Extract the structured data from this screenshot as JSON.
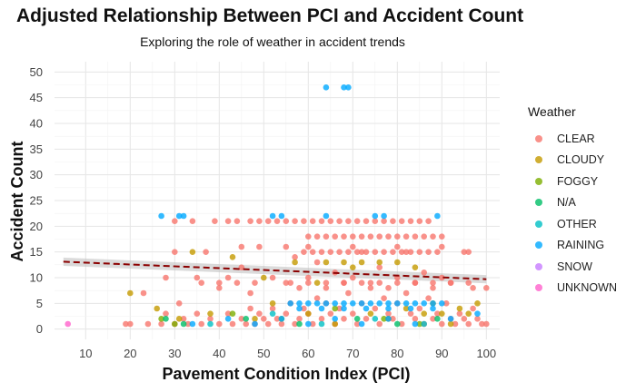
{
  "chart_data": {
    "type": "scatter",
    "title": "Adjusted Relationship Between PCI and Accident Count",
    "subtitle": "Exploring the role of weather in accident trends",
    "xlabel": "Pavement Condition Index (PCI)",
    "ylabel": "Accident Count",
    "xlim": [
      3,
      103
    ],
    "ylim": [
      -2,
      52
    ],
    "xticks": [
      10,
      20,
      30,
      40,
      50,
      60,
      70,
      80,
      90,
      100
    ],
    "yticks": [
      0,
      5,
      10,
      15,
      20,
      25,
      30,
      35,
      40,
      45,
      50
    ],
    "grid": true,
    "legend": {
      "title": "Weather",
      "position": "right"
    },
    "series": [
      {
        "name": "CLEAR",
        "color": "#F8766D",
        "points": [
          [
            19,
            1
          ],
          [
            20,
            1
          ],
          [
            24,
            1
          ],
          [
            27,
            1
          ],
          [
            28,
            3
          ],
          [
            30,
            1
          ],
          [
            31,
            5
          ],
          [
            32,
            2
          ],
          [
            33,
            1
          ],
          [
            35,
            3
          ],
          [
            36,
            1
          ],
          [
            38,
            2
          ],
          [
            40,
            1
          ],
          [
            42,
            3
          ],
          [
            43,
            1
          ],
          [
            45,
            2
          ],
          [
            46,
            1
          ],
          [
            47,
            4
          ],
          [
            48,
            1
          ],
          [
            49,
            3
          ],
          [
            50,
            2
          ],
          [
            51,
            1
          ],
          [
            52,
            4
          ],
          [
            53,
            2
          ],
          [
            54,
            1
          ],
          [
            55,
            3
          ],
          [
            56,
            5
          ],
          [
            57,
            1
          ],
          [
            58,
            2
          ],
          [
            59,
            4
          ],
          [
            60,
            3
          ],
          [
            61,
            1
          ],
          [
            62,
            6
          ],
          [
            63,
            2
          ],
          [
            64,
            5
          ],
          [
            65,
            3
          ],
          [
            66,
            1
          ],
          [
            67,
            4
          ],
          [
            68,
            2
          ],
          [
            69,
            7
          ],
          [
            70,
            3
          ],
          [
            71,
            1
          ],
          [
            72,
            5
          ],
          [
            73,
            2
          ],
          [
            74,
            8
          ],
          [
            75,
            4
          ],
          [
            76,
            1
          ],
          [
            77,
            6
          ],
          [
            78,
            3
          ],
          [
            79,
            2
          ],
          [
            80,
            5
          ],
          [
            81,
            1
          ],
          [
            82,
            7
          ],
          [
            83,
            3
          ],
          [
            84,
            2
          ],
          [
            85,
            4
          ],
          [
            86,
            1
          ],
          [
            87,
            6
          ],
          [
            88,
            2
          ],
          [
            89,
            3
          ],
          [
            90,
            1
          ],
          [
            91,
            5
          ],
          [
            92,
            2
          ],
          [
            93,
            1
          ],
          [
            94,
            3
          ],
          [
            95,
            2
          ],
          [
            96,
            1
          ],
          [
            97,
            4
          ],
          [
            98,
            2
          ],
          [
            99,
            1
          ],
          [
            100,
            1
          ],
          [
            23,
            7
          ],
          [
            28,
            10
          ],
          [
            30,
            15
          ],
          [
            35,
            10
          ],
          [
            37,
            15
          ],
          [
            40,
            8
          ],
          [
            42,
            10
          ],
          [
            45,
            12
          ],
          [
            47,
            7
          ],
          [
            52,
            10
          ],
          [
            55,
            9
          ],
          [
            57,
            14
          ],
          [
            58,
            8
          ],
          [
            60,
            10
          ],
          [
            62,
            13
          ],
          [
            64,
            8
          ],
          [
            66,
            11
          ],
          [
            68,
            9
          ],
          [
            70,
            10
          ],
          [
            72,
            15
          ],
          [
            74,
            9
          ],
          [
            76,
            12
          ],
          [
            78,
            8
          ],
          [
            80,
            10
          ],
          [
            82,
            15
          ],
          [
            84,
            9
          ],
          [
            86,
            11
          ],
          [
            88,
            8
          ],
          [
            90,
            10
          ],
          [
            92,
            9
          ],
          [
            95,
            15
          ],
          [
            97,
            8
          ],
          [
            30,
            21
          ],
          [
            34,
            21
          ],
          [
            39,
            21
          ],
          [
            42,
            21
          ],
          [
            44,
            21
          ],
          [
            47,
            21
          ],
          [
            49,
            21
          ],
          [
            51,
            21
          ],
          [
            53,
            21
          ],
          [
            55,
            21
          ],
          [
            57,
            21
          ],
          [
            59,
            21
          ],
          [
            61,
            21
          ],
          [
            63,
            21
          ],
          [
            65,
            21
          ],
          [
            67,
            21
          ],
          [
            69,
            21
          ],
          [
            71,
            21
          ],
          [
            73,
            21
          ],
          [
            75,
            21
          ],
          [
            77,
            21
          ],
          [
            79,
            21
          ],
          [
            81,
            21
          ],
          [
            83,
            21
          ],
          [
            85,
            21
          ],
          [
            87,
            21
          ],
          [
            60,
            18
          ],
          [
            62,
            18
          ],
          [
            64,
            18
          ],
          [
            66,
            18
          ],
          [
            68,
            18
          ],
          [
            70,
            18
          ],
          [
            72,
            18
          ],
          [
            74,
            18
          ],
          [
            76,
            18
          ],
          [
            78,
            18
          ],
          [
            80,
            18
          ],
          [
            82,
            18
          ],
          [
            84,
            18
          ],
          [
            86,
            18
          ],
          [
            88,
            18
          ],
          [
            90,
            18
          ],
          [
            59,
            15
          ],
          [
            61,
            15
          ],
          [
            63,
            15
          ],
          [
            65,
            15
          ],
          [
            67,
            15
          ],
          [
            69,
            15
          ],
          [
            71,
            15
          ],
          [
            73,
            15
          ],
          [
            75,
            15
          ],
          [
            77,
            15
          ],
          [
            79,
            15
          ],
          [
            81,
            15
          ],
          [
            83,
            15
          ],
          [
            85,
            15
          ],
          [
            87,
            15
          ],
          [
            89,
            15
          ],
          [
            96,
            15
          ],
          [
            45,
            16
          ],
          [
            49,
            16
          ],
          [
            55,
            16
          ],
          [
            60,
            16
          ],
          [
            70,
            16
          ],
          [
            80,
            16
          ],
          [
            90,
            16
          ],
          [
            36,
            9
          ],
          [
            40,
            9
          ],
          [
            44,
            9
          ],
          [
            48,
            9
          ],
          [
            56,
            9
          ],
          [
            60,
            9
          ],
          [
            64,
            9
          ],
          [
            68,
            9
          ],
          [
            72,
            9
          ],
          [
            76,
            9
          ],
          [
            80,
            9
          ],
          [
            84,
            9
          ],
          [
            88,
            9
          ],
          [
            92,
            9
          ],
          [
            96,
            9
          ],
          [
            100,
            8
          ]
        ]
      },
      {
        "name": "CLOUDY",
        "color": "#C49A00",
        "points": [
          [
            20,
            7
          ],
          [
            26,
            4
          ],
          [
            31,
            2
          ],
          [
            34,
            15
          ],
          [
            38,
            3
          ],
          [
            43,
            14
          ],
          [
            48,
            2
          ],
          [
            52,
            5
          ],
          [
            57,
            13
          ],
          [
            60,
            3
          ],
          [
            64,
            13
          ],
          [
            66,
            1
          ],
          [
            68,
            13
          ],
          [
            70,
            12
          ],
          [
            72,
            13
          ],
          [
            74,
            3
          ],
          [
            76,
            13
          ],
          [
            78,
            2
          ],
          [
            80,
            13
          ],
          [
            82,
            4
          ],
          [
            84,
            12
          ],
          [
            86,
            3
          ],
          [
            88,
            5
          ],
          [
            90,
            3
          ],
          [
            92,
            1
          ],
          [
            94,
            4
          ],
          [
            96,
            3
          ],
          [
            98,
            5
          ],
          [
            50,
            10
          ],
          [
            62,
            9
          ]
        ]
      },
      {
        "name": "FOGGY",
        "color": "#7CAE00",
        "points": [
          [
            27,
            2
          ],
          [
            30,
            1
          ],
          [
            43,
            3
          ],
          [
            54,
            2
          ],
          [
            66,
            4
          ],
          [
            77,
            2
          ],
          [
            85,
            1
          ]
        ]
      },
      {
        "name": "N/A",
        "color": "#00BE67",
        "points": [
          [
            28,
            2
          ],
          [
            32,
            1
          ],
          [
            46,
            2
          ],
          [
            58,
            1
          ],
          [
            71,
            2
          ],
          [
            80,
            1
          ],
          [
            89,
            2
          ]
        ]
      },
      {
        "name": "OTHER",
        "color": "#00BFC4",
        "points": [
          [
            38,
            1
          ],
          [
            52,
            3
          ],
          [
            63,
            1
          ],
          [
            75,
            2
          ],
          [
            86,
            1
          ]
        ]
      },
      {
        "name": "RAINING",
        "color": "#00A9FF",
        "points": [
          [
            27,
            22
          ],
          [
            31,
            22
          ],
          [
            32,
            22
          ],
          [
            52,
            22
          ],
          [
            54,
            22
          ],
          [
            64,
            22
          ],
          [
            75,
            22
          ],
          [
            77,
            22
          ],
          [
            89,
            22
          ],
          [
            64,
            47
          ],
          [
            68,
            47
          ],
          [
            69,
            47
          ],
          [
            56,
            5
          ],
          [
            58,
            5
          ],
          [
            60,
            5
          ],
          [
            62,
            5
          ],
          [
            64,
            5
          ],
          [
            66,
            5
          ],
          [
            68,
            5
          ],
          [
            70,
            5
          ],
          [
            72,
            5
          ],
          [
            74,
            5
          ],
          [
            76,
            5
          ],
          [
            78,
            5
          ],
          [
            80,
            5
          ],
          [
            82,
            5
          ],
          [
            84,
            5
          ],
          [
            86,
            5
          ],
          [
            88,
            5
          ],
          [
            90,
            5
          ],
          [
            58,
            4
          ],
          [
            63,
            4
          ],
          [
            68,
            4
          ],
          [
            73,
            4
          ],
          [
            78,
            4
          ],
          [
            83,
            4
          ],
          [
            88,
            4
          ],
          [
            34,
            1
          ],
          [
            42,
            2
          ],
          [
            48,
            1
          ],
          [
            54,
            2
          ],
          [
            60,
            1
          ],
          [
            66,
            2
          ],
          [
            72,
            1
          ],
          [
            78,
            2
          ],
          [
            84,
            1
          ],
          [
            92,
            2
          ],
          [
            98,
            3
          ]
        ]
      },
      {
        "name": "SNOW",
        "color": "#C77CFF",
        "points": []
      },
      {
        "name": "UNKNOWN",
        "color": "#FF61CC",
        "points": [
          [
            6,
            1
          ]
        ]
      }
    ],
    "trend_line": {
      "type": "linear",
      "color": "#8B0000",
      "x": [
        5,
        100
      ],
      "y": [
        13.1,
        9.7
      ]
    }
  }
}
